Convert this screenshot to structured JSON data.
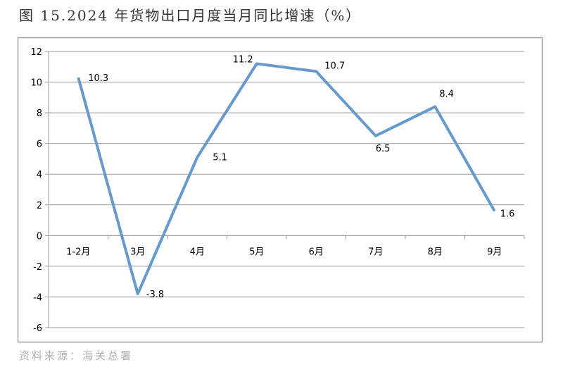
{
  "title": "图 15.2024 年货物出口月度当月同比增速（%）",
  "source": "资料来源：海关总署",
  "chart_data": {
    "type": "line",
    "title": "图 15.2024 年货物出口月度当月同比增速（%）",
    "categories": [
      "1-2月",
      "3月",
      "4月",
      "5月",
      "6月",
      "7月",
      "8月",
      "9月"
    ],
    "values": [
      10.3,
      -3.8,
      5.1,
      11.2,
      10.7,
      6.5,
      8.4,
      1.6
    ],
    "data_labels": [
      "10.3",
      "-3.8",
      "5.1",
      "11.2",
      "10.7",
      "6.5",
      "8.4",
      "1.6"
    ],
    "ylim": [
      -6,
      12
    ],
    "yticks": [
      -6,
      -4,
      -2,
      0,
      2,
      4,
      6,
      8,
      10,
      12
    ],
    "grid": true,
    "legend": "none",
    "line_color": "#6699cc"
  }
}
